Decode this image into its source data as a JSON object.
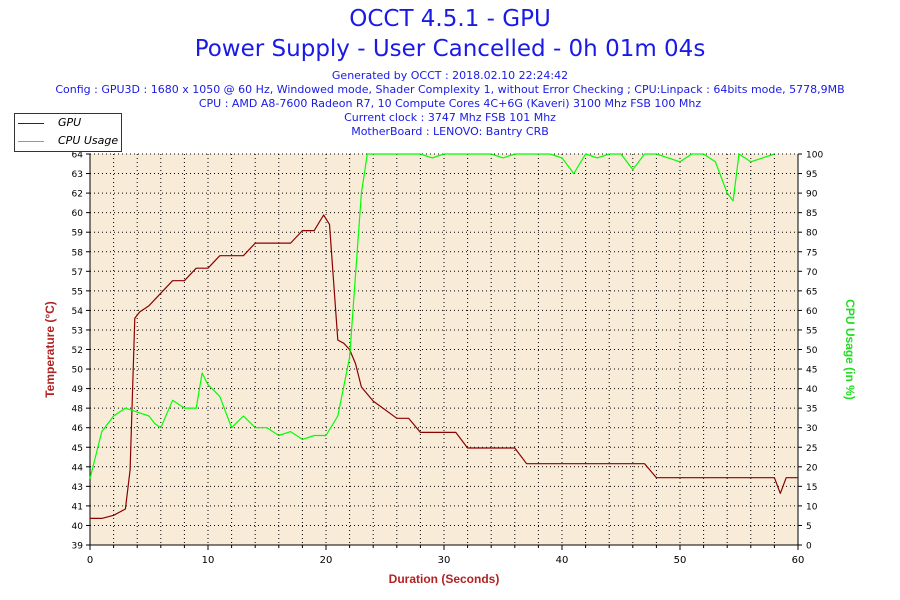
{
  "header": {
    "title": "OCCT 4.5.1 - GPU",
    "subtitle": "Power Supply - User Cancelled - 0h 01m 04s",
    "generated": "Generated by OCCT : 2018.02.10 22:24:42",
    "config": "Config : GPU3D : 1680 x 1050 @ 60 Hz, Windowed mode, Shader Complexity 1, without Error Checking ; CPU:Linpack : 64bits mode, 5778,9MB",
    "cpu": "CPU : AMD A8-7600 Radeon R7, 10 Compute Cores 4C+6G (Kaveri) 3100 Mhz FSB 100 Mhz",
    "clock": "Current clock : 3747 Mhz FSB 101 Mhz",
    "motherboard": "MotherBoard : LENOVO: Bantry CRB"
  },
  "chart_data": {
    "type": "line",
    "xlabel": "Duration (Seconds)",
    "ylabel_left": "Temperature (°C)",
    "ylabel_right": "CPU Usage (in %)",
    "xlim": [
      0,
      60
    ],
    "x_ticks": [
      "0",
      "10",
      "20",
      "30",
      "40",
      "50",
      "60"
    ],
    "ylim_left": [
      39,
      64
    ],
    "y_ticks_left": [
      "39",
      "40",
      "41",
      "43",
      "44",
      "45",
      "46",
      "48",
      "49",
      "50",
      "52",
      "53",
      "54",
      "55",
      "57",
      "58",
      "59",
      "60",
      "62",
      "63",
      "64"
    ],
    "ylim_right": [
      0,
      100
    ],
    "y_ticks_right": [
      "0",
      "5",
      "10",
      "15",
      "20",
      "25",
      "30",
      "35",
      "40",
      "45",
      "50",
      "55",
      "60",
      "65",
      "70",
      "75",
      "80",
      "85",
      "90",
      "95",
      "100"
    ],
    "grid": true,
    "legend_position": "top-left",
    "series": [
      {
        "name": "GPU",
        "axis": "left",
        "color": "#8b0000",
        "x": [
          0,
          1,
          2,
          3,
          3.4,
          3.8,
          4.2,
          5,
          6,
          7,
          8,
          9,
          10,
          11,
          12,
          13,
          14,
          15,
          16,
          17,
          18,
          19,
          19.8,
          20.3,
          21,
          21.5,
          22,
          22.5,
          23,
          24,
          26,
          27,
          28,
          29,
          30,
          31,
          32,
          33,
          34,
          35,
          36,
          37,
          38,
          39,
          40,
          42,
          44,
          46,
          47,
          48,
          50,
          52,
          54,
          56,
          57,
          57.5,
          58,
          58.5,
          59,
          60
        ],
        "values": [
          40.7,
          40.7,
          40.9,
          41.3,
          43.8,
          53.5,
          53.9,
          54.3,
          55.1,
          55.9,
          55.9,
          56.7,
          56.7,
          57.5,
          57.5,
          57.5,
          58.3,
          58.3,
          58.3,
          58.3,
          59.1,
          59.1,
          60.1,
          59.5,
          52.1,
          51.9,
          51.5,
          50.6,
          49.1,
          48.2,
          47.1,
          47.1,
          46.2,
          46.2,
          46.2,
          46.2,
          45.2,
          45.2,
          45.2,
          45.2,
          45.2,
          44.2,
          44.2,
          44.2,
          44.2,
          44.2,
          44.2,
          44.2,
          44.2,
          43.3,
          43.3,
          43.3,
          43.3,
          43.3,
          43.3,
          43.3,
          43.3,
          42.3,
          43.3,
          43.3
        ]
      },
      {
        "name": "CPU Usage",
        "axis": "right",
        "color": "#00ff00",
        "x": [
          0,
          1,
          2,
          3,
          4,
          5,
          5.5,
          6,
          7,
          8,
          9,
          9.5,
          10,
          11,
          12,
          13,
          14,
          15,
          16,
          17,
          18,
          19,
          20,
          21,
          22,
          23,
          23.5,
          24,
          25,
          26,
          27,
          28,
          29,
          30,
          31,
          32,
          33,
          34,
          35,
          36,
          37,
          38,
          39,
          40,
          41,
          42,
          43,
          44,
          45,
          46,
          47,
          48,
          49,
          50,
          51,
          52,
          53,
          54,
          54.5,
          55,
          56,
          57,
          58
        ],
        "values": [
          17,
          29,
          33,
          35,
          34,
          33,
          31,
          30,
          37,
          35,
          35,
          44,
          41,
          38,
          30,
          33,
          30,
          30,
          28,
          29,
          27,
          28,
          28,
          33,
          48,
          90,
          100,
          100,
          100,
          100,
          100,
          100,
          99,
          100,
          100,
          100,
          100,
          100,
          99,
          100,
          100,
          100,
          100,
          99,
          95,
          100,
          99,
          100,
          100,
          96,
          100,
          100,
          99,
          98,
          100,
          100,
          98,
          90,
          88,
          100,
          98,
          99,
          100
        ]
      }
    ]
  },
  "colors": {
    "title": "#1a1ae6",
    "plot_bg": "#f8ecd8",
    "temperature": "#8b0000",
    "cpu_usage": "#00ff00",
    "left_axis_label": "#b22222",
    "right_axis_label": "#22dd22"
  }
}
